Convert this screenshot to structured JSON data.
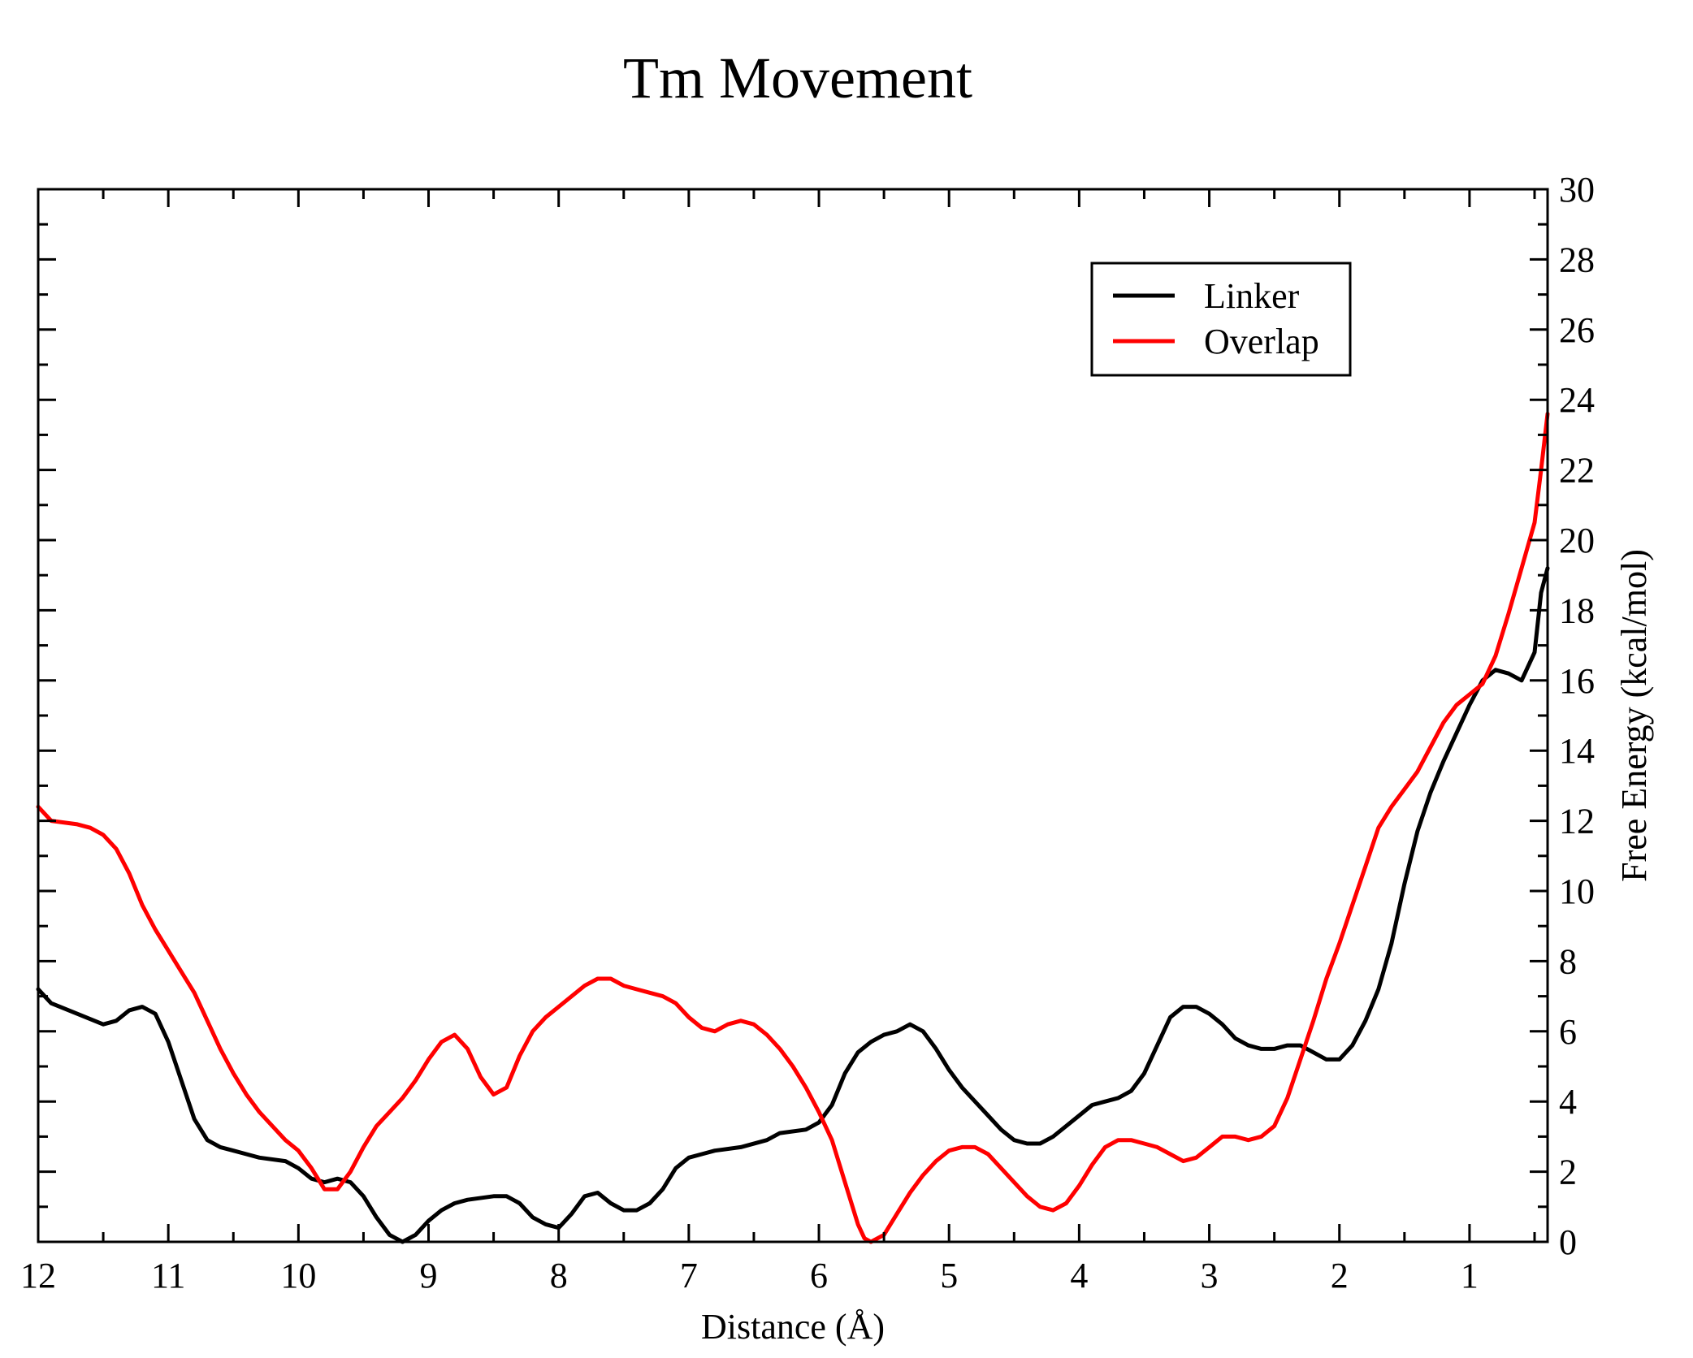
{
  "chart_data": {
    "type": "line",
    "title": "Tm Movement",
    "xlabel": "Distance (Å)",
    "ylabel": "Free Energy (kcal/mol)",
    "y_axis_side": "right",
    "x_reversed": true,
    "xlim": [
      12,
      0.4
    ],
    "ylim": [
      0,
      30
    ],
    "x_ticks": [
      12,
      11,
      10,
      9,
      8,
      7,
      6,
      5,
      4,
      3,
      2,
      1
    ],
    "x_tick_labels": [
      "12",
      "11",
      "10",
      "9",
      "8",
      "7",
      "6",
      "5",
      "4",
      "3",
      "2",
      "1"
    ],
    "y_ticks": [
      0,
      2,
      4,
      6,
      8,
      10,
      12,
      14,
      16,
      18,
      20,
      22,
      24,
      26,
      28,
      30
    ],
    "y_tick_labels": [
      "0",
      "2",
      "4",
      "6",
      "8",
      "10",
      "12",
      "14",
      "16",
      "18",
      "20",
      "22",
      "24",
      "26",
      "28",
      "30"
    ],
    "grid": false,
    "legend_position": "top-right",
    "series": [
      {
        "name": "Linker",
        "color": "#000000",
        "points": [
          [
            12.0,
            7.2
          ],
          [
            11.9,
            6.8
          ],
          [
            11.7,
            6.5
          ],
          [
            11.5,
            6.2
          ],
          [
            11.4,
            6.3
          ],
          [
            11.3,
            6.6
          ],
          [
            11.2,
            6.7
          ],
          [
            11.1,
            6.5
          ],
          [
            11.0,
            5.7
          ],
          [
            10.9,
            4.6
          ],
          [
            10.8,
            3.5
          ],
          [
            10.7,
            2.9
          ],
          [
            10.6,
            2.7
          ],
          [
            10.5,
            2.6
          ],
          [
            10.4,
            2.5
          ],
          [
            10.3,
            2.4
          ],
          [
            10.1,
            2.3
          ],
          [
            10.0,
            2.1
          ],
          [
            9.9,
            1.8
          ],
          [
            9.8,
            1.7
          ],
          [
            9.7,
            1.8
          ],
          [
            9.6,
            1.7
          ],
          [
            9.5,
            1.3
          ],
          [
            9.4,
            0.7
          ],
          [
            9.3,
            0.2
          ],
          [
            9.2,
            0.0
          ],
          [
            9.1,
            0.2
          ],
          [
            9.0,
            0.6
          ],
          [
            8.9,
            0.9
          ],
          [
            8.8,
            1.1
          ],
          [
            8.7,
            1.2
          ],
          [
            8.5,
            1.3
          ],
          [
            8.4,
            1.3
          ],
          [
            8.3,
            1.1
          ],
          [
            8.2,
            0.7
          ],
          [
            8.1,
            0.5
          ],
          [
            8.0,
            0.4
          ],
          [
            7.9,
            0.8
          ],
          [
            7.8,
            1.3
          ],
          [
            7.7,
            1.4
          ],
          [
            7.6,
            1.1
          ],
          [
            7.5,
            0.9
          ],
          [
            7.4,
            0.9
          ],
          [
            7.3,
            1.1
          ],
          [
            7.2,
            1.5
          ],
          [
            7.1,
            2.1
          ],
          [
            7.0,
            2.4
          ],
          [
            6.9,
            2.5
          ],
          [
            6.8,
            2.6
          ],
          [
            6.6,
            2.7
          ],
          [
            6.4,
            2.9
          ],
          [
            6.3,
            3.1
          ],
          [
            6.1,
            3.2
          ],
          [
            6.0,
            3.4
          ],
          [
            5.9,
            3.9
          ],
          [
            5.8,
            4.8
          ],
          [
            5.7,
            5.4
          ],
          [
            5.6,
            5.7
          ],
          [
            5.5,
            5.9
          ],
          [
            5.4,
            6.0
          ],
          [
            5.3,
            6.2
          ],
          [
            5.2,
            6.0
          ],
          [
            5.1,
            5.5
          ],
          [
            5.0,
            4.9
          ],
          [
            4.9,
            4.4
          ],
          [
            4.8,
            4.0
          ],
          [
            4.7,
            3.6
          ],
          [
            4.6,
            3.2
          ],
          [
            4.5,
            2.9
          ],
          [
            4.4,
            2.8
          ],
          [
            4.3,
            2.8
          ],
          [
            4.2,
            3.0
          ],
          [
            4.1,
            3.3
          ],
          [
            4.0,
            3.6
          ],
          [
            3.9,
            3.9
          ],
          [
            3.8,
            4.0
          ],
          [
            3.7,
            4.1
          ],
          [
            3.6,
            4.3
          ],
          [
            3.5,
            4.8
          ],
          [
            3.4,
            5.6
          ],
          [
            3.3,
            6.4
          ],
          [
            3.2,
            6.7
          ],
          [
            3.1,
            6.7
          ],
          [
            3.0,
            6.5
          ],
          [
            2.9,
            6.2
          ],
          [
            2.8,
            5.8
          ],
          [
            2.7,
            5.6
          ],
          [
            2.6,
            5.5
          ],
          [
            2.5,
            5.5
          ],
          [
            2.4,
            5.6
          ],
          [
            2.3,
            5.6
          ],
          [
            2.2,
            5.4
          ],
          [
            2.1,
            5.2
          ],
          [
            2.0,
            5.2
          ],
          [
            1.9,
            5.6
          ],
          [
            1.8,
            6.3
          ],
          [
            1.7,
            7.2
          ],
          [
            1.6,
            8.5
          ],
          [
            1.5,
            10.2
          ],
          [
            1.4,
            11.7
          ],
          [
            1.3,
            12.8
          ],
          [
            1.2,
            13.7
          ],
          [
            1.1,
            14.5
          ],
          [
            1.0,
            15.3
          ],
          [
            0.9,
            16.0
          ],
          [
            0.8,
            16.3
          ],
          [
            0.7,
            16.2
          ],
          [
            0.6,
            16.0
          ],
          [
            0.5,
            16.8
          ],
          [
            0.45,
            18.5
          ],
          [
            0.4,
            19.2
          ]
        ]
      },
      {
        "name": "Overlap",
        "color": "#ff0000",
        "points": [
          [
            12.0,
            12.4
          ],
          [
            11.9,
            12.0
          ],
          [
            11.7,
            11.9
          ],
          [
            11.6,
            11.8
          ],
          [
            11.5,
            11.6
          ],
          [
            11.4,
            11.2
          ],
          [
            11.3,
            10.5
          ],
          [
            11.2,
            9.6
          ],
          [
            11.1,
            8.9
          ],
          [
            11.0,
            8.3
          ],
          [
            10.9,
            7.7
          ],
          [
            10.8,
            7.1
          ],
          [
            10.7,
            6.3
          ],
          [
            10.6,
            5.5
          ],
          [
            10.5,
            4.8
          ],
          [
            10.4,
            4.2
          ],
          [
            10.3,
            3.7
          ],
          [
            10.2,
            3.3
          ],
          [
            10.1,
            2.9
          ],
          [
            10.0,
            2.6
          ],
          [
            9.9,
            2.1
          ],
          [
            9.8,
            1.5
          ],
          [
            9.7,
            1.5
          ],
          [
            9.6,
            2.0
          ],
          [
            9.5,
            2.7
          ],
          [
            9.4,
            3.3
          ],
          [
            9.3,
            3.7
          ],
          [
            9.2,
            4.1
          ],
          [
            9.1,
            4.6
          ],
          [
            9.0,
            5.2
          ],
          [
            8.9,
            5.7
          ],
          [
            8.8,
            5.9
          ],
          [
            8.7,
            5.5
          ],
          [
            8.6,
            4.7
          ],
          [
            8.5,
            4.2
          ],
          [
            8.4,
            4.4
          ],
          [
            8.3,
            5.3
          ],
          [
            8.2,
            6.0
          ],
          [
            8.1,
            6.4
          ],
          [
            8.0,
            6.7
          ],
          [
            7.9,
            7.0
          ],
          [
            7.8,
            7.3
          ],
          [
            7.7,
            7.5
          ],
          [
            7.6,
            7.5
          ],
          [
            7.5,
            7.3
          ],
          [
            7.4,
            7.2
          ],
          [
            7.3,
            7.1
          ],
          [
            7.2,
            7.0
          ],
          [
            7.1,
            6.8
          ],
          [
            7.0,
            6.4
          ],
          [
            6.9,
            6.1
          ],
          [
            6.8,
            6.0
          ],
          [
            6.7,
            6.2
          ],
          [
            6.6,
            6.3
          ],
          [
            6.5,
            6.2
          ],
          [
            6.4,
            5.9
          ],
          [
            6.3,
            5.5
          ],
          [
            6.2,
            5.0
          ],
          [
            6.1,
            4.4
          ],
          [
            6.0,
            3.7
          ],
          [
            5.9,
            2.9
          ],
          [
            5.8,
            1.7
          ],
          [
            5.7,
            0.5
          ],
          [
            5.65,
            0.1
          ],
          [
            5.6,
            0.0
          ],
          [
            5.5,
            0.2
          ],
          [
            5.4,
            0.8
          ],
          [
            5.3,
            1.4
          ],
          [
            5.2,
            1.9
          ],
          [
            5.1,
            2.3
          ],
          [
            5.0,
            2.6
          ],
          [
            4.9,
            2.7
          ],
          [
            4.8,
            2.7
          ],
          [
            4.7,
            2.5
          ],
          [
            4.6,
            2.1
          ],
          [
            4.5,
            1.7
          ],
          [
            4.4,
            1.3
          ],
          [
            4.3,
            1.0
          ],
          [
            4.2,
            0.9
          ],
          [
            4.1,
            1.1
          ],
          [
            4.0,
            1.6
          ],
          [
            3.9,
            2.2
          ],
          [
            3.8,
            2.7
          ],
          [
            3.7,
            2.9
          ],
          [
            3.6,
            2.9
          ],
          [
            3.5,
            2.8
          ],
          [
            3.4,
            2.7
          ],
          [
            3.3,
            2.5
          ],
          [
            3.2,
            2.3
          ],
          [
            3.1,
            2.4
          ],
          [
            3.0,
            2.7
          ],
          [
            2.9,
            3.0
          ],
          [
            2.8,
            3.0
          ],
          [
            2.7,
            2.9
          ],
          [
            2.6,
            3.0
          ],
          [
            2.5,
            3.3
          ],
          [
            2.4,
            4.1
          ],
          [
            2.3,
            5.2
          ],
          [
            2.2,
            6.3
          ],
          [
            2.1,
            7.5
          ],
          [
            2.0,
            8.5
          ],
          [
            1.9,
            9.6
          ],
          [
            1.8,
            10.7
          ],
          [
            1.7,
            11.8
          ],
          [
            1.6,
            12.4
          ],
          [
            1.5,
            12.9
          ],
          [
            1.4,
            13.4
          ],
          [
            1.3,
            14.1
          ],
          [
            1.2,
            14.8
          ],
          [
            1.1,
            15.3
          ],
          [
            1.0,
            15.6
          ],
          [
            0.9,
            15.9
          ],
          [
            0.8,
            16.7
          ],
          [
            0.7,
            17.9
          ],
          [
            0.6,
            19.2
          ],
          [
            0.5,
            20.5
          ],
          [
            0.45,
            22.0
          ],
          [
            0.4,
            23.6
          ]
        ]
      }
    ]
  }
}
